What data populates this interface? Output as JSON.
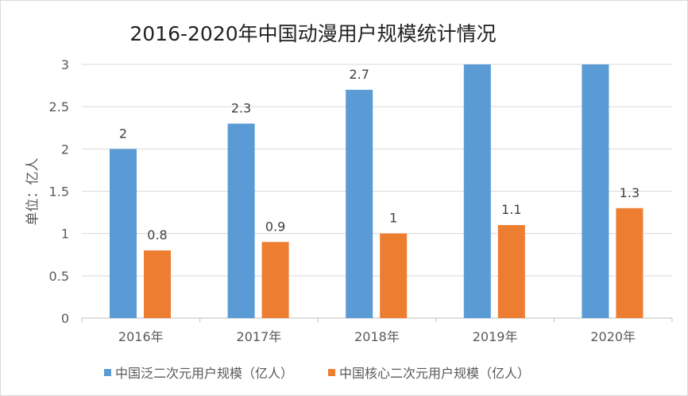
{
  "chart_data": {
    "type": "bar",
    "title": "2016-2020年中国动漫用户规模统计情况",
    "ylabel": "单位：亿人",
    "xlabel": "",
    "categories": [
      "2016年",
      "2017年",
      "2018年",
      "2019年",
      "2020年"
    ],
    "ylim": [
      0,
      3
    ],
    "yticks": [
      0,
      0.5,
      1,
      1.5,
      2,
      2.5,
      3
    ],
    "grid": true,
    "legend": "bottom",
    "series": [
      {
        "name": "中国泛二次元用户规模（亿人）",
        "color": "#5b9bd5",
        "values": [
          2,
          2.3,
          2.7,
          3,
          3
        ],
        "labels": [
          "2",
          "2.3",
          "2.7",
          "",
          ""
        ]
      },
      {
        "name": "中国核心二次元用户规模（亿人）",
        "color": "#ed7d31",
        "values": [
          0.8,
          0.9,
          1,
          1.1,
          1.3
        ],
        "labels": [
          "0.8",
          "0.9",
          "1",
          "1.1",
          "1.3"
        ]
      }
    ]
  }
}
